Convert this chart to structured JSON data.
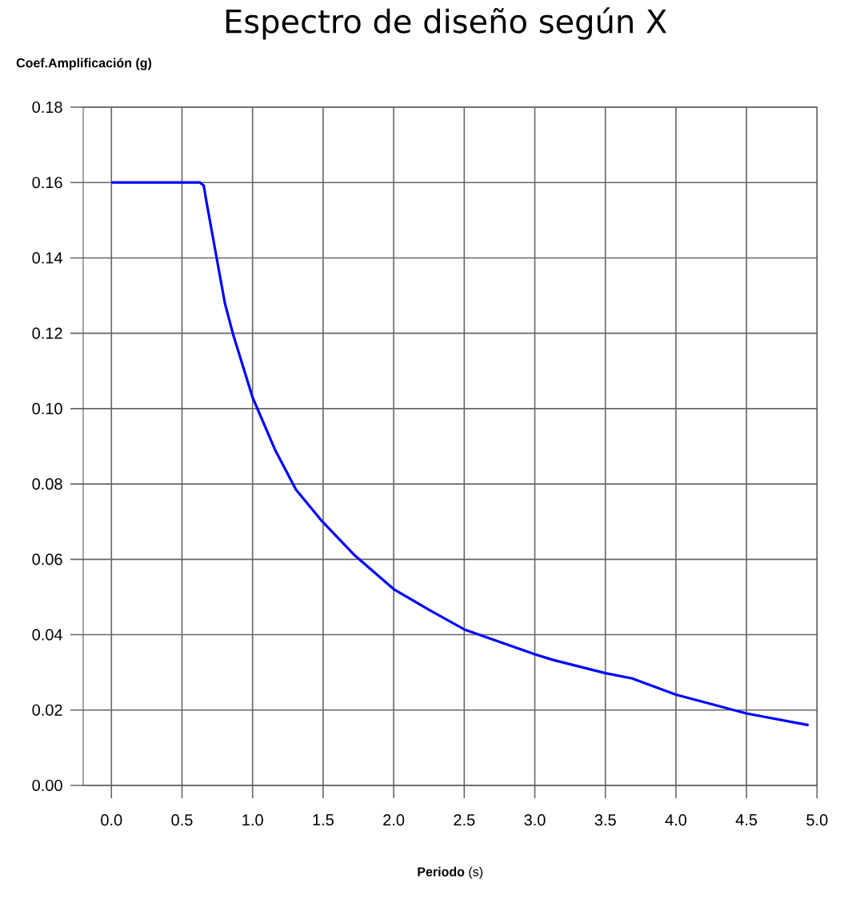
{
  "chart_data": {
    "type": "line",
    "title": "Espectro de diseño según X",
    "ylabel": "Coef.Amplificación (g)",
    "xlabel": "**Periodo** (s)",
    "x": [
      0.0,
      0.628,
      0.654,
      0.673,
      0.748,
      0.804,
      0.86,
      1.0,
      1.159,
      1.308,
      1.495,
      1.72,
      2.0,
      2.25,
      2.5,
      3.0,
      3.13,
      3.5,
      3.69,
      4.0,
      4.5,
      4.94
    ],
    "series": [
      {
        "color": "#0000ff",
        "values": [
          0.16,
          0.16,
          0.1592,
          0.155,
          0.1395,
          0.128,
          0.12,
          0.103,
          0.0891,
          0.0785,
          0.07,
          0.0612,
          0.0521,
          0.0466,
          0.0414,
          0.0348,
          0.0333,
          0.0298,
          0.0284,
          0.0241,
          0.0191,
          0.016
        ]
      }
    ],
    "xlim": [
      -0.2,
      5.0
    ],
    "ylim": [
      0,
      0.18
    ],
    "xticks": [
      {
        "value": 0,
        "label": "0.0"
      },
      0.5,
      {
        "value": 1,
        "label": "1.0"
      },
      1.5,
      {
        "value": 2,
        "label": "2.0"
      },
      2.5,
      {
        "value": 3,
        "label": "3.0"
      },
      3.5,
      {
        "value": 4,
        "label": "4.0"
      },
      4.5,
      {
        "value": 5,
        "label": "5.0"
      }
    ],
    "yticks": [
      {
        "value": 0,
        "label": "0.00"
      },
      0.02,
      0.04,
      0.06,
      0.08,
      {
        "value": 0.1,
        "label": "0.10"
      },
      0.12,
      0.14,
      0.16,
      0.18
    ],
    "grid": true,
    "marker": "none",
    "line_style": "solid"
  }
}
